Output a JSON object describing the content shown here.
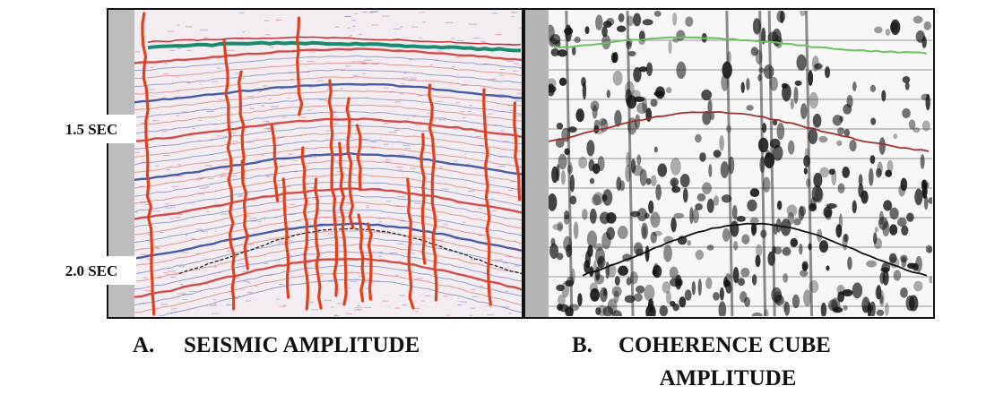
{
  "time_labels": [
    "1.5 SEC",
    "2.0 SEC"
  ],
  "panels": [
    {
      "label": "A.",
      "title_lines": [
        "SEISMIC AMPLITUDE"
      ]
    },
    {
      "label": "B.",
      "title_lines": [
        "COHERENCE CUBE",
        "AMPLITUDE"
      ]
    }
  ]
}
